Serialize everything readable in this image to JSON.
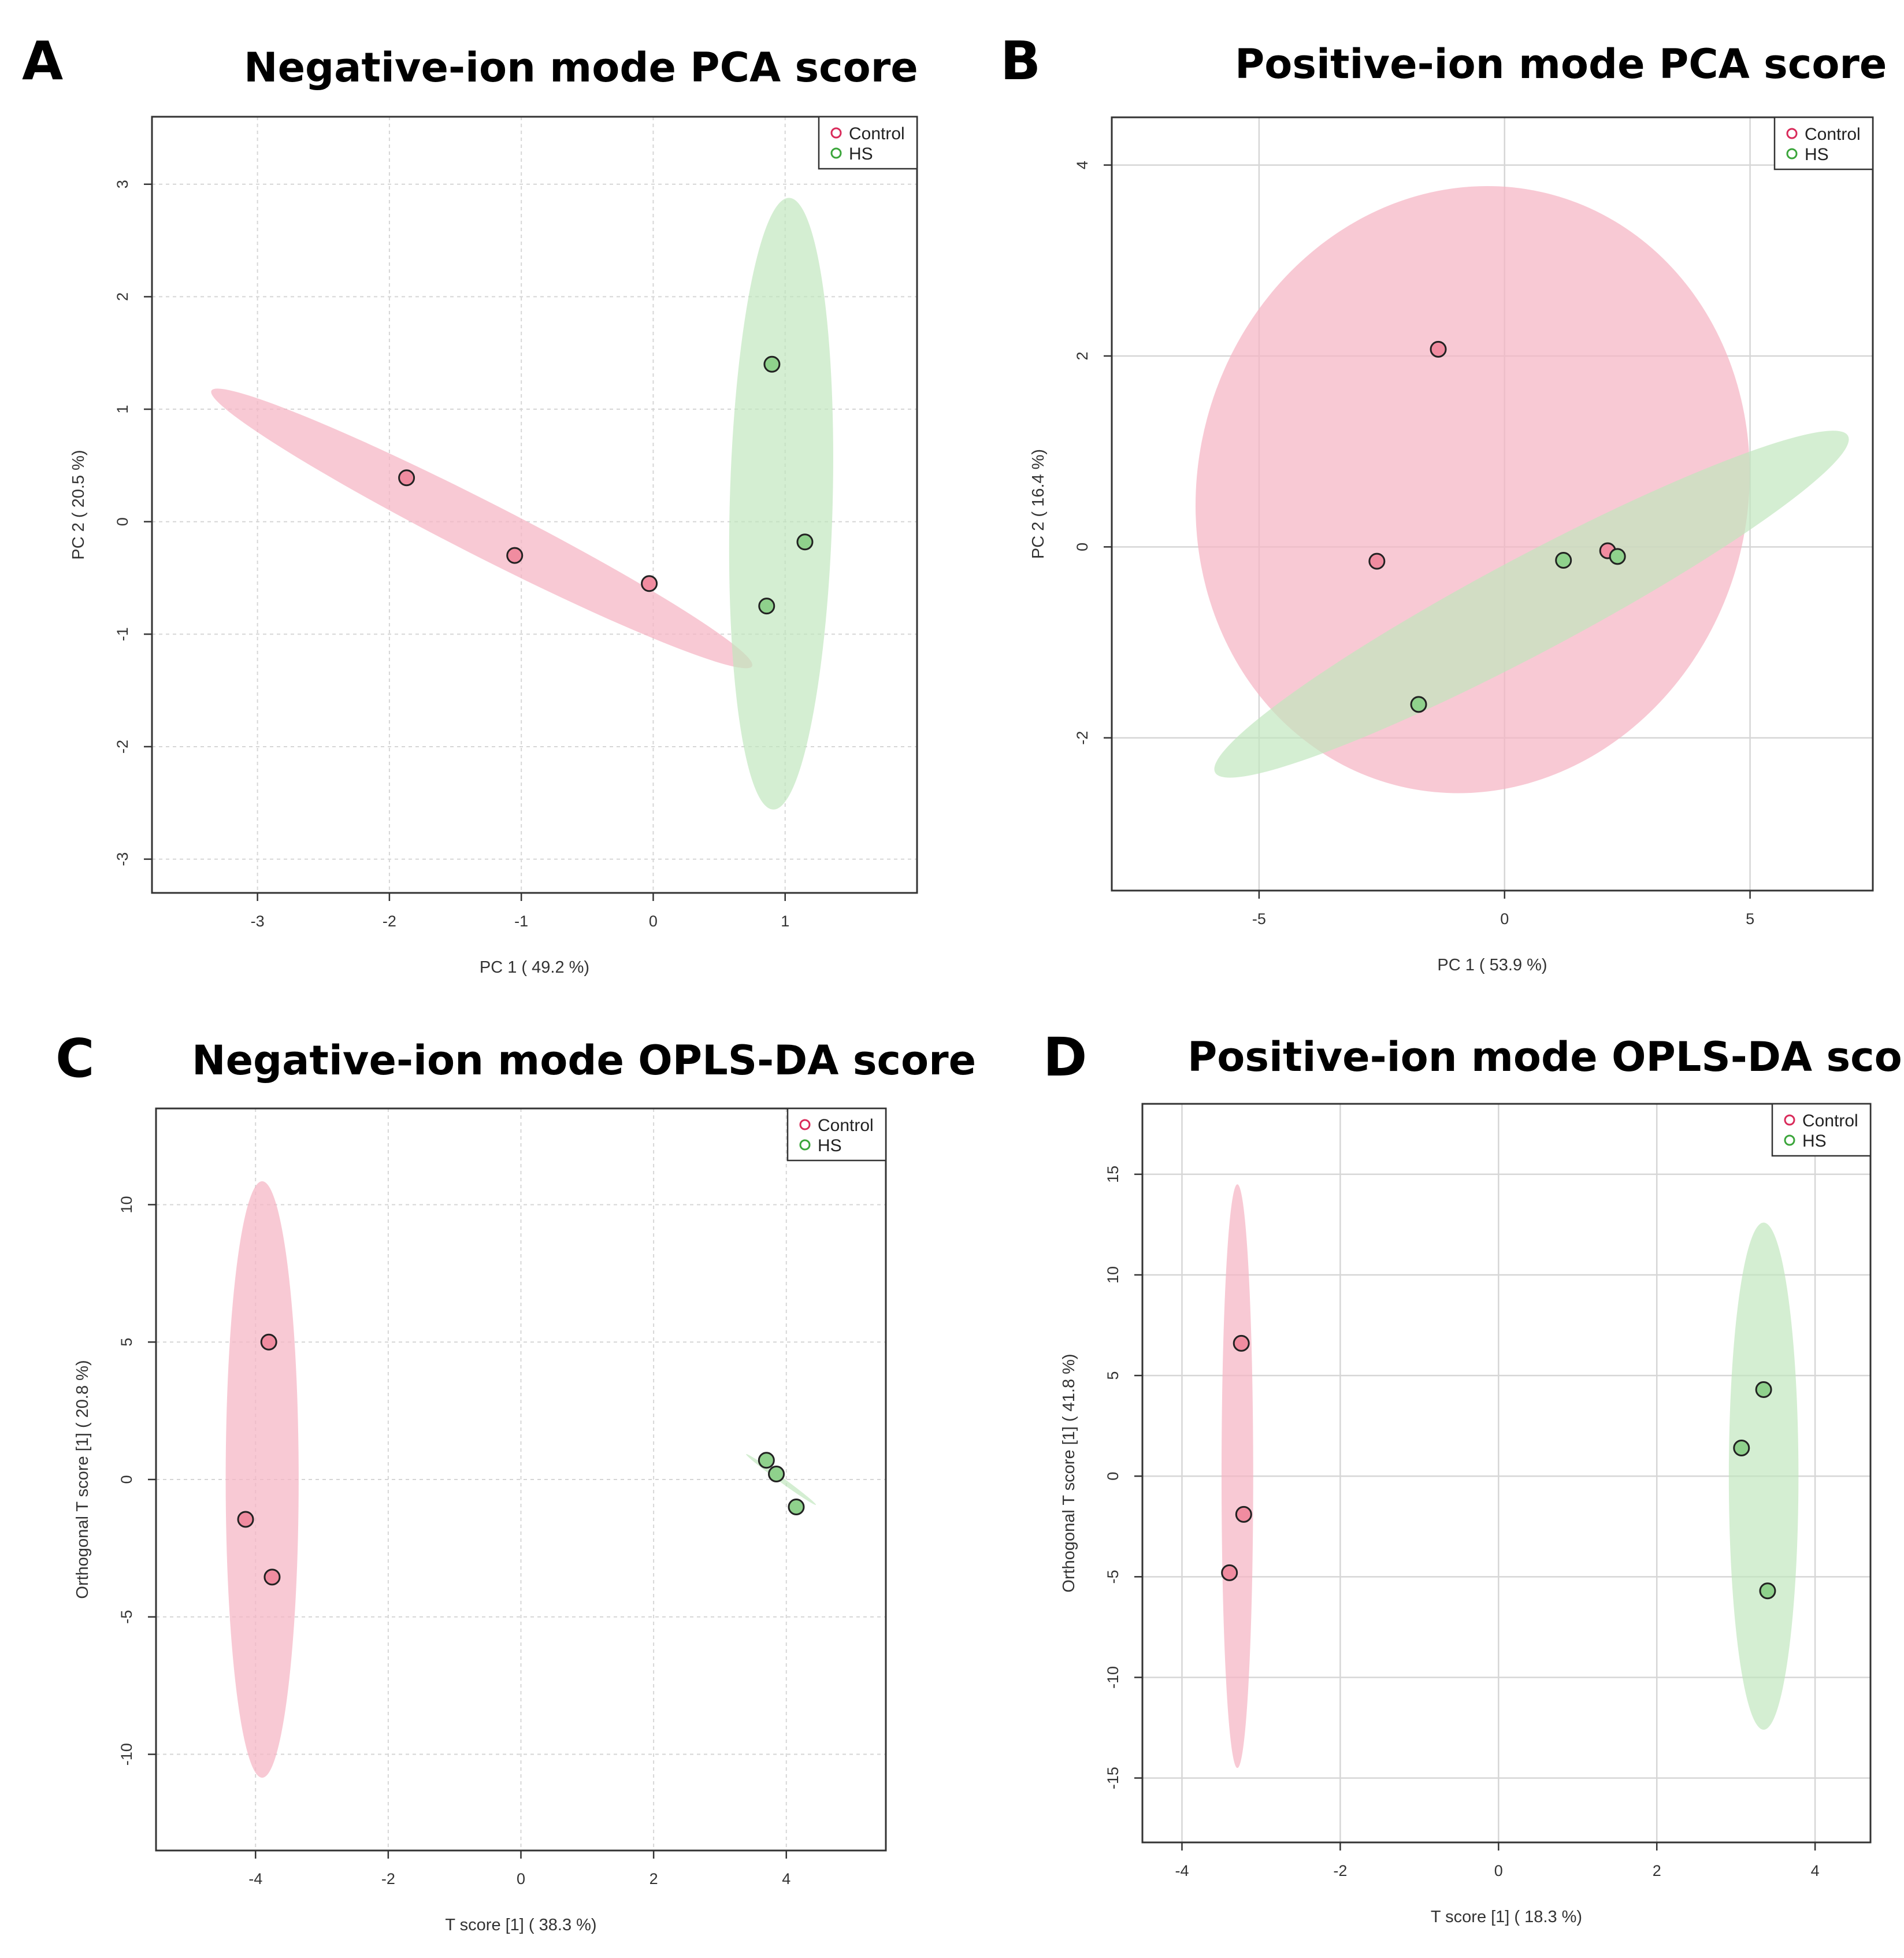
{
  "colors": {
    "control_fill": "#f08ca0",
    "control_stroke": "#d92a5a",
    "hs_fill": "#8fd18c",
    "hs_stroke": "#3aa53a",
    "control_ellipse": "#f5b4c4",
    "hs_ellipse": "#bfe6bd",
    "grid": "#d6d6d6",
    "frame": "#333333"
  },
  "chart_data": [
    {
      "panel": "A",
      "type": "scatter",
      "title": "Negative-ion mode PCA score",
      "xlabel": "PC 1 ( 49.2 %)",
      "ylabel": "PC 2 ( 20.5 %)",
      "xlim": [
        -3.8,
        2.0
      ],
      "ylim": [
        -3.3,
        3.6
      ],
      "xticks": [
        -3,
        -2,
        -1,
        0,
        1
      ],
      "yticks": [
        -3,
        -2,
        -1,
        0,
        1,
        2,
        3
      ],
      "grid": "dashed",
      "legend": {
        "position": "top-right",
        "entries": [
          "Control",
          "HS"
        ]
      },
      "series": [
        {
          "name": "Control",
          "points": [
            [
              -1.87,
              0.39
            ],
            [
              -1.05,
              -0.3
            ],
            [
              -0.03,
              -0.55
            ]
          ],
          "ellipse": {
            "cx": -1.3,
            "cy": -0.06,
            "rx": 2.3,
            "ry": 0.24,
            "angle_deg": -27
          }
        },
        {
          "name": "HS",
          "points": [
            [
              0.9,
              1.4
            ],
            [
              1.15,
              -0.18
            ],
            [
              0.86,
              -0.75
            ]
          ],
          "ellipse": {
            "cx": 0.97,
            "cy": 0.16,
            "rx": 0.39,
            "ry": 2.72,
            "angle_deg": -1.5
          }
        }
      ]
    },
    {
      "panel": "B",
      "type": "scatter",
      "title": "Positive-ion mode PCA score",
      "xlabel": "PC 1 ( 53.9 %)",
      "ylabel": "PC 2 ( 16.4 %)",
      "xlim": [
        -8.0,
        7.5
      ],
      "ylim": [
        -3.6,
        4.5
      ],
      "xticks": [
        -5,
        0,
        5
      ],
      "yticks": [
        -2,
        0,
        2,
        4
      ],
      "grid": "solid",
      "legend": {
        "position": "top-right",
        "entries": [
          "Control",
          "HS"
        ]
      },
      "series": [
        {
          "name": "Control",
          "points": [
            [
              -1.35,
              2.07
            ],
            [
              -2.6,
              -0.15
            ],
            [
              2.1,
              -0.04
            ]
          ],
          "ellipse": {
            "cx": -0.65,
            "cy": 0.6,
            "rx": 5.6,
            "ry": 3.2,
            "angle_deg": -15
          }
        },
        {
          "name": "HS",
          "points": [
            [
              -1.75,
              -1.65
            ],
            [
              1.2,
              -0.14
            ],
            [
              2.3,
              -0.1
            ]
          ],
          "ellipse": {
            "cx": 0.55,
            "cy": -0.6,
            "rx": 7.3,
            "ry": 0.5,
            "angle_deg": 28
          }
        }
      ]
    },
    {
      "panel": "C",
      "type": "scatter",
      "title": "Negative-ion mode OPLS-DA score",
      "xlabel": "T score [1] ( 38.3 %)",
      "ylabel": "Orthogonal T score [1] ( 20.8 %)",
      "xlim": [
        -5.5,
        5.5
      ],
      "ylim": [
        -13.5,
        13.5
      ],
      "xticks": [
        -4,
        -2,
        0,
        2,
        4
      ],
      "yticks": [
        -10,
        -5,
        0,
        5,
        10
      ],
      "grid": "dashed",
      "legend": {
        "position": "top-right",
        "entries": [
          "Control",
          "HS"
        ]
      },
      "series": [
        {
          "name": "Control",
          "points": [
            [
              -3.8,
              5.0
            ],
            [
              -4.15,
              -1.45
            ],
            [
              -3.75,
              -3.55
            ]
          ],
          "ellipse": {
            "cx": -3.9,
            "cy": 0.0,
            "rx": 0.55,
            "ry": 10.85,
            "angle_deg": 0
          }
        },
        {
          "name": "HS",
          "points": [
            [
              3.7,
              0.7
            ],
            [
              3.85,
              0.2
            ],
            [
              4.15,
              -1.0
            ]
          ],
          "ellipse": {
            "cx": 3.92,
            "cy": 0.0,
            "rx": 0.65,
            "ry": 0.09,
            "angle_deg": -36
          }
        }
      ]
    },
    {
      "panel": "D",
      "type": "scatter",
      "title": "Positive-ion mode OPLS-DA score",
      "xlabel": "T score [1] ( 18.3 %)",
      "ylabel": "Orthogonal T score [1] ( 41.8 %)",
      "xlim": [
        -4.5,
        4.7
      ],
      "ylim": [
        -18.2,
        18.5
      ],
      "xticks": [
        -4,
        -2,
        0,
        2,
        4
      ],
      "yticks": [
        -15,
        -10,
        -5,
        0,
        5,
        10,
        15
      ],
      "grid": "solid",
      "legend": {
        "position": "top-right",
        "entries": [
          "Control",
          "HS"
        ]
      },
      "series": [
        {
          "name": "Control",
          "points": [
            [
              -3.25,
              6.6
            ],
            [
              -3.22,
              -1.9
            ],
            [
              -3.4,
              -4.8
            ]
          ],
          "ellipse": {
            "cx": -3.3,
            "cy": 0.0,
            "rx": 0.2,
            "ry": 14.5,
            "angle_deg": 0
          }
        },
        {
          "name": "HS",
          "points": [
            [
              3.35,
              4.3
            ],
            [
              3.07,
              1.4
            ],
            [
              3.4,
              -5.7
            ]
          ],
          "ellipse": {
            "cx": 3.35,
            "cy": 0.0,
            "rx": 0.44,
            "ry": 12.6,
            "angle_deg": 0
          }
        }
      ]
    }
  ]
}
